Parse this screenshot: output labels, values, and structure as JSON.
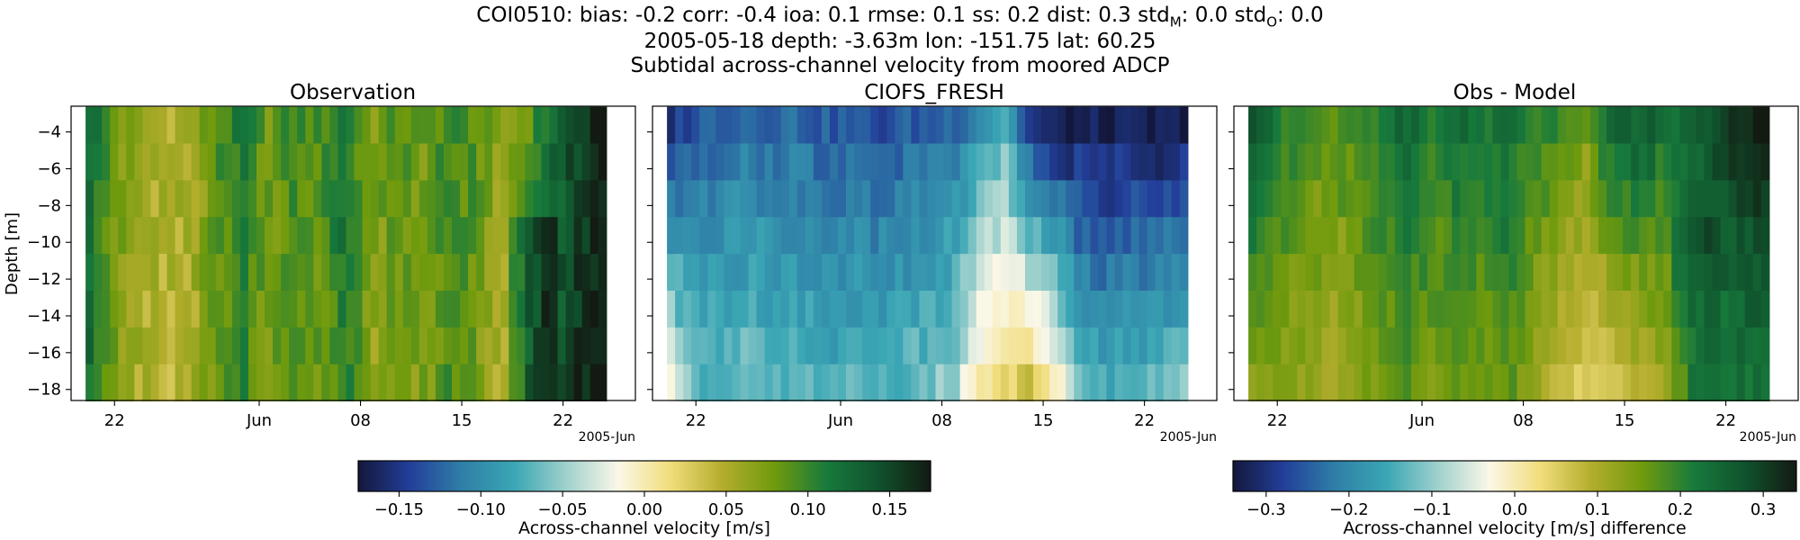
{
  "header": {
    "stats_prefix": "COI0510: bias: -0.2  corr: -0.4  ioa: 0.1  rmse: 0.1  ss: 0.2  dist: 0.3  std",
    "stats_sub_m": "M",
    "stats_mid": ": 0.0  std",
    "stats_sub_o": "O",
    "stats_suffix": ": 0.0",
    "line2": "2005-05-18 depth: -3.63m lon: -151.75 lat: 60.25",
    "line3": "Subtidal across-channel velocity from moored ADCP"
  },
  "colors": {
    "colormap_stops": [
      "#13173b",
      "#233f9a",
      "#2f7fa7",
      "#3aa6b4",
      "#9fd1cd",
      "#fbf7e8",
      "#f1dd7b",
      "#b3ad2c",
      "#6f9a0d",
      "#177a3c",
      "#10522d",
      "#131a12"
    ]
  },
  "chart_data": [
    {
      "type": "heatmap",
      "title": "Observation",
      "ylabel": "Depth [m]",
      "yticks": [
        "−4",
        "−6",
        "−8",
        "−10",
        "−12",
        "−14",
        "−16",
        "−18"
      ],
      "ytick_values": [
        -4,
        -6,
        -8,
        -10,
        -12,
        -14,
        -16,
        -18
      ],
      "ylim": [
        -18.6,
        -2.6
      ],
      "xlim": [
        "2005-05-19",
        "2005-06-27"
      ],
      "xticks": [
        "22",
        "Jun",
        "08",
        "15",
        "22"
      ],
      "xtick_dates": [
        "2005-05-22",
        "2005-06-01",
        "2005-06-08",
        "2005-06-15",
        "2005-06-22"
      ],
      "xoffset_label": "2005-Jun",
      "data_start": "2005-05-20",
      "data_end": "2005-06-25",
      "depth_bins": [
        -3.63,
        -5.63,
        -7.63,
        -9.63,
        -11.63,
        -13.63,
        -15.63,
        -17.63
      ],
      "column_anchors": [
        0.13,
        0.08,
        0.06,
        0.05,
        0.06,
        0.09,
        0.11,
        0.08,
        0.1,
        0.09,
        0.12,
        0.07,
        0.09,
        0.08,
        0.1,
        0.09,
        0.06,
        0.08,
        0.12,
        0.15,
        0.17
      ],
      "value_range": [
        -0.175,
        0.175
      ],
      "colorbar_label": "Across-channel velocity [m/s]",
      "colorbar_ticks": [
        "−0.15",
        "−0.10",
        "−0.05",
        "0.00",
        "0.05",
        "0.10",
        "0.15"
      ],
      "colorbar_tick_values": [
        -0.15,
        -0.1,
        -0.05,
        0.0,
        0.05,
        0.1,
        0.15
      ]
    },
    {
      "type": "heatmap",
      "title": "CIOFS_FRESH",
      "yticks": [
        "−4",
        "−6",
        "−8",
        "−10",
        "−12",
        "−14",
        "−16",
        "−18"
      ],
      "ytick_values": [
        -4,
        -6,
        -8,
        -10,
        -12,
        -14,
        -16,
        -18
      ],
      "ylim": [
        -18.6,
        -2.6
      ],
      "xlim": [
        "2005-05-19",
        "2005-06-27"
      ],
      "xticks": [
        "22",
        "Jun",
        "08",
        "15",
        "22"
      ],
      "xtick_dates": [
        "2005-05-22",
        "2005-06-01",
        "2005-06-08",
        "2005-06-15",
        "2005-06-22"
      ],
      "xoffset_label": "2005-Jun",
      "data_start": "2005-05-20",
      "data_end": "2005-06-25",
      "depth_bins": [
        -3.63,
        -5.63,
        -7.63,
        -9.63,
        -11.63,
        -13.63,
        -15.63,
        -17.63
      ],
      "surface_anchors": [
        -0.15,
        -0.13,
        -0.12,
        -0.12,
        -0.12,
        -0.12,
        -0.13,
        -0.13,
        -0.14,
        -0.13,
        -0.13,
        -0.12,
        -0.1,
        -0.07,
        -0.15,
        -0.17,
        -0.17,
        -0.17,
        -0.17,
        -0.17,
        -0.17
      ],
      "bottom_anchors": [
        -0.02,
        -0.07,
        -0.07,
        -0.06,
        -0.07,
        -0.07,
        -0.08,
        -0.07,
        -0.07,
        -0.07,
        -0.06,
        -0.05,
        0.0,
        0.02,
        0.03,
        0.0,
        -0.07,
        -0.08,
        -0.07,
        -0.07,
        -0.06
      ],
      "value_range": [
        -0.175,
        0.175
      ]
    },
    {
      "type": "heatmap",
      "title": "Obs - Model",
      "yticks": [
        "−4",
        "−6",
        "−8",
        "−10",
        "−12",
        "−14",
        "−16",
        "−18"
      ],
      "ytick_values": [
        -4,
        -6,
        -8,
        -10,
        -12,
        -14,
        -16,
        -18
      ],
      "ylim": [
        -18.6,
        -2.6
      ],
      "xlim": [
        "2005-05-19",
        "2005-06-27"
      ],
      "xticks": [
        "22",
        "Jun",
        "08",
        "15",
        "22"
      ],
      "xtick_dates": [
        "2005-05-22",
        "2005-06-01",
        "2005-06-08",
        "2005-06-15",
        "2005-06-22"
      ],
      "xoffset_label": "2005-Jun",
      "data_start": "2005-05-20",
      "data_end": "2005-06-25",
      "depth_bins": [
        -3.63,
        -5.63,
        -7.63,
        -9.63,
        -11.63,
        -13.63,
        -15.63,
        -17.63
      ],
      "value_range": [
        -0.34,
        0.34
      ],
      "colorbar_label": "Across-channel velocity [m/s] difference",
      "colorbar_ticks": [
        "−0.3",
        "−0.2",
        "−0.1",
        "0.0",
        "0.1",
        "0.2",
        "0.3"
      ],
      "colorbar_tick_values": [
        -0.3,
        -0.2,
        -0.1,
        0.0,
        0.1,
        0.2,
        0.3
      ]
    }
  ]
}
